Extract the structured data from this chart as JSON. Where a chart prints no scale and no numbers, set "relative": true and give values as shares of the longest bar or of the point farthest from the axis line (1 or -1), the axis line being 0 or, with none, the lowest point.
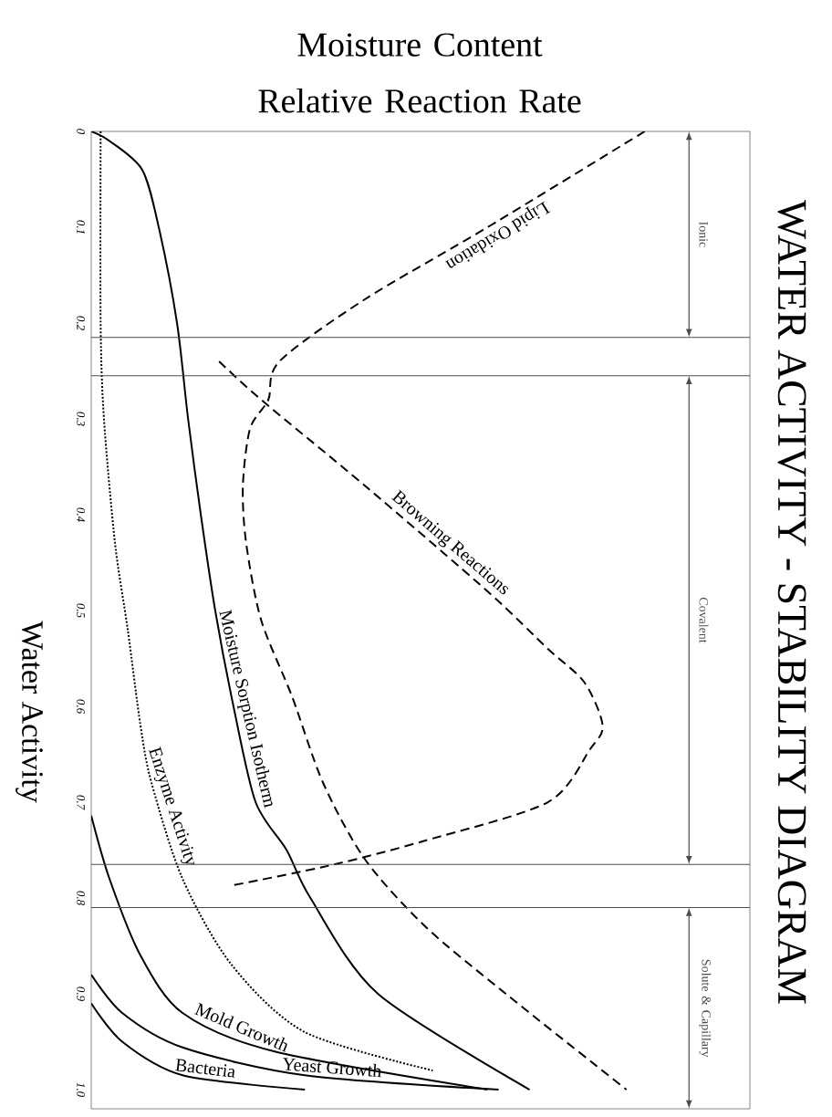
{
  "chart_data": {
    "type": "line",
    "title": "WATER ACTIVITY - STABILITY DIAGRAM",
    "ylabel": "Water Activity",
    "xlabel": "Moisture Content Relative Reaction Rate",
    "orientation": "horizontal",
    "relative": true,
    "tick_labels": "y",
    "legend": false,
    "grid": false,
    "marker": "none",
    "ylim": [
      1.02,
      0
    ],
    "yticks": [
      0,
      0.1,
      0.2,
      0.3,
      0.4,
      0.5,
      0.6,
      0.7,
      0.8,
      0.9,
      {
        "value": 1,
        "label": "1.0"
      }
    ],
    "series": [
      {
        "name": "Moisture Sorption Isotherm",
        "color": "#000000",
        "line_style": "solid",
        "x": [
          0,
          0.01,
          0.04,
          0.1,
          0.2,
          0.3,
          0.4,
          0.5,
          0.6,
          0.7,
          0.75,
          0.8,
          0.9,
          1.0
        ],
        "values": [
          0,
          0.033,
          0.092,
          0.122,
          0.155,
          0.175,
          0.198,
          0.224,
          0.257,
          0.297,
          0.353,
          0.396,
          0.518,
          0.792
        ]
      },
      {
        "name": "Lipid Oxidation",
        "color": "#000000",
        "line_style": "dashed",
        "x": [
          0,
          0.1,
          0.175,
          0.24,
          0.28,
          0.31,
          0.37,
          0.43,
          0.51,
          0.59,
          0.68,
          0.76,
          0.83,
          0.9,
          1.0
        ],
        "values": [
          1.0,
          0.716,
          0.495,
          0.34,
          0.32,
          0.287,
          0.274,
          0.28,
          0.307,
          0.363,
          0.419,
          0.495,
          0.604,
          0.749,
          0.967
        ]
      },
      {
        "name": "Browning Reactions",
        "color": "#000000",
        "line_style": "dashed",
        "x": [
          0.24,
          0.28,
          0.37,
          0.48,
          0.54,
          0.575,
          0.62,
          0.645,
          0.7,
          0.74,
          0.765,
          0.787
        ],
        "values": [
          0.231,
          0.307,
          0.495,
          0.716,
          0.825,
          0.891,
          0.924,
          0.901,
          0.825,
          0.604,
          0.439,
          0.254
        ]
      },
      {
        "name": "Enzyme Activity",
        "color": "#000000",
        "line_style": "dotted",
        "x": [
          0,
          0.2,
          0.3,
          0.43,
          0.52,
          0.62,
          0.68,
          0.78,
          0.87,
          0.94,
          0.98
        ],
        "values": [
          0.017,
          0.017,
          0.023,
          0.043,
          0.066,
          0.089,
          0.109,
          0.165,
          0.254,
          0.386,
          0.617
        ]
      },
      {
        "name": "Mold Growth",
        "color": "#000000",
        "line_style": "solid",
        "x": [
          0.714,
          0.78,
          0.86,
          0.92,
          0.96,
          1.0
        ],
        "values": [
          0,
          0.033,
          0.089,
          0.165,
          0.33,
          0.716
        ]
      },
      {
        "name": "Yeast Growth",
        "color": "#000000",
        "line_style": "solid",
        "x": [
          0.88,
          0.92,
          0.956,
          0.985,
          1.0
        ],
        "values": [
          0,
          0.056,
          0.165,
          0.386,
          0.736
        ]
      },
      {
        "name": "Bacteria",
        "color": "#000000",
        "line_style": "solid",
        "x": [
          0.91,
          0.95,
          0.985,
          1.0
        ],
        "values": [
          0,
          0.056,
          0.165,
          0.386
        ]
      }
    ],
    "ref_lines": [
      {
        "axis": "y",
        "value": 0.215
      },
      {
        "axis": "y",
        "value": 0.255
      },
      {
        "axis": "y",
        "value": 0.765
      },
      {
        "axis": "y",
        "value": 0.81
      }
    ],
    "annotations": [
      "Ionic",
      "Covalent",
      "Solute & Capillary"
    ]
  }
}
